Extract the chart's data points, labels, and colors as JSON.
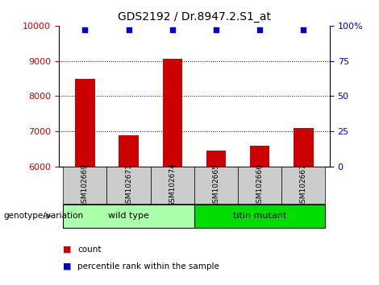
{
  "title": "GDS2192 / Dr.8947.2.S1_at",
  "samples": [
    "GSM102669",
    "GSM102671",
    "GSM102674",
    "GSM102665",
    "GSM102666",
    "GSM102667"
  ],
  "counts": [
    8500,
    6900,
    9050,
    6450,
    6600,
    7100
  ],
  "percentile_ranks": [
    97,
    97,
    97,
    97,
    97,
    97
  ],
  "ylim_left": [
    6000,
    10000
  ],
  "ylim_right": [
    0,
    100
  ],
  "yticks_left": [
    6000,
    7000,
    8000,
    9000,
    10000
  ],
  "yticks_right": [
    0,
    25,
    50,
    75,
    100
  ],
  "bar_color": "#CC0000",
  "marker_color": "#0000CC",
  "bar_width": 0.45,
  "groups": [
    {
      "label": "wild type",
      "indices": [
        0,
        1,
        2
      ],
      "color": "#AAFFAA"
    },
    {
      "label": "titin mutant",
      "indices": [
        3,
        4,
        5
      ],
      "color": "#00DD00"
    }
  ],
  "genotype_label": "genotype/variation",
  "legend_count_label": "count",
  "legend_percentile_label": "percentile rank within the sample",
  "tick_color_left": "#CC0000",
  "tick_color_right": "#0000CC",
  "grid_color": "#000000",
  "sample_box_color": "#CCCCCC"
}
